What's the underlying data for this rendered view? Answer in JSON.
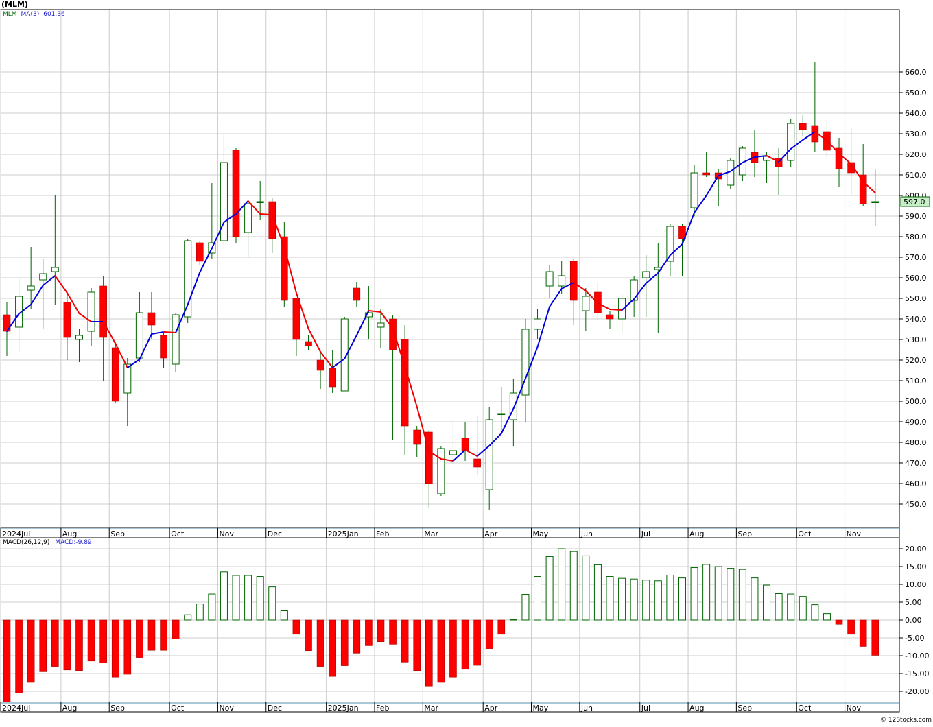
{
  "title": "(MLM)",
  "legend": {
    "symbol": "MLM",
    "ma_label": "MA(3)",
    "ma_value": "601.36"
  },
  "macd_legend": {
    "label": "MACD(26,12,9)",
    "value": "MACD:-9.89"
  },
  "price_flag": "597.0",
  "credit": "© 12Stocks.com",
  "colors": {
    "up_body_stroke": "#006400",
    "down_body_fill": "#ff0000",
    "wick": "#006400",
    "ma_up": "#0000dd",
    "ma_down": "#ee0000",
    "macd_pos_stroke": "#006400",
    "macd_neg_fill": "#ff0000",
    "grid": "#cccccc",
    "axis_band": "#a8c8d8",
    "flag_bg": "#c8f0c8"
  },
  "chart_data": [
    {
      "type": "candlestick",
      "interval": "weekly",
      "y_ticks": [
        450,
        460,
        470,
        480,
        490,
        500,
        510,
        520,
        530,
        540,
        550,
        560,
        570,
        580,
        590,
        600,
        610,
        620,
        630,
        640,
        650,
        660
      ],
      "y_tick_labels": [
        "450.0",
        "460.0",
        "470.0",
        "480.0",
        "490.0",
        "500.0",
        "510.0",
        "520.0",
        "530.0",
        "540.0",
        "550.0",
        "560.0",
        "570.0",
        "580.0",
        "590.0",
        "600.0",
        "610.0",
        "620.0",
        "630.0",
        "640.0",
        "650.0",
        "660.0"
      ],
      "x_labels": [
        {
          "label": "2024Jul",
          "week": 0
        },
        {
          "label": "Aug",
          "week": 5
        },
        {
          "label": "Sep",
          "week": 9
        },
        {
          "label": "Oct",
          "week": 14
        },
        {
          "label": "Nov",
          "week": 18
        },
        {
          "label": "Dec",
          "week": 22
        },
        {
          "label": "2025Jan",
          "week": 27
        },
        {
          "label": "Feb",
          "week": 31
        },
        {
          "label": "Mar",
          "week": 35
        },
        {
          "label": "Apr",
          "week": 40
        },
        {
          "label": "May",
          "week": 44
        },
        {
          "label": "Jun",
          "week": 48
        },
        {
          "label": "Jul",
          "week": 53
        },
        {
          "label": "Aug",
          "week": 57
        },
        {
          "label": "Sep",
          "week": 61
        },
        {
          "label": "Oct",
          "week": 66
        },
        {
          "label": "Nov",
          "week": 70
        }
      ],
      "candles": [
        {
          "o": 542,
          "h": 548,
          "l": 522,
          "c": 534
        },
        {
          "o": 536,
          "h": 560,
          "l": 524,
          "c": 551
        },
        {
          "o": 554,
          "h": 575,
          "l": 545,
          "c": 556
        },
        {
          "o": 559,
          "h": 569,
          "l": 535,
          "c": 562
        },
        {
          "o": 563,
          "h": 600,
          "l": 547,
          "c": 565
        },
        {
          "o": 548,
          "h": 553,
          "l": 520,
          "c": 531
        },
        {
          "o": 530,
          "h": 535,
          "l": 519,
          "c": 532
        },
        {
          "o": 534,
          "h": 555,
          "l": 527,
          "c": 553
        },
        {
          "o": 556,
          "h": 561,
          "l": 510,
          "c": 531
        },
        {
          "o": 526,
          "h": 529,
          "l": 499,
          "c": 500
        },
        {
          "o": 504,
          "h": 521,
          "l": 488,
          "c": 518
        },
        {
          "o": 521,
          "h": 553,
          "l": 519,
          "c": 543
        },
        {
          "o": 543,
          "h": 553,
          "l": 530,
          "c": 537
        },
        {
          "o": 532,
          "h": 534,
          "l": 516,
          "c": 521
        },
        {
          "o": 518,
          "h": 543,
          "l": 514,
          "c": 542
        },
        {
          "o": 541,
          "h": 579,
          "l": 538,
          "c": 578
        },
        {
          "o": 577,
          "h": 578,
          "l": 566,
          "c": 568
        },
        {
          "o": 572,
          "h": 606,
          "l": 569,
          "c": 577
        },
        {
          "o": 578,
          "h": 630,
          "l": 576,
          "c": 616
        },
        {
          "o": 622,
          "h": 623,
          "l": 577,
          "c": 580
        },
        {
          "o": 582,
          "h": 598,
          "l": 570,
          "c": 596
        },
        {
          "o": 597,
          "h": 607,
          "l": 588,
          "c": 597
        },
        {
          "o": 597,
          "h": 599,
          "l": 572,
          "c": 579
        },
        {
          "o": 580,
          "h": 587,
          "l": 546,
          "c": 549
        },
        {
          "o": 550,
          "h": 550,
          "l": 522,
          "c": 530
        },
        {
          "o": 529,
          "h": 532,
          "l": 525,
          "c": 527
        },
        {
          "o": 520,
          "h": 524,
          "l": 506,
          "c": 515
        },
        {
          "o": 516,
          "h": 525,
          "l": 504,
          "c": 507
        },
        {
          "o": 505,
          "h": 541,
          "l": 505,
          "c": 540
        },
        {
          "o": 555,
          "h": 558,
          "l": 546,
          "c": 549
        },
        {
          "o": 541,
          "h": 556,
          "l": 530,
          "c": 543
        },
        {
          "o": 536,
          "h": 545,
          "l": 526,
          "c": 538
        },
        {
          "o": 540,
          "h": 542,
          "l": 481,
          "c": 525
        },
        {
          "o": 530,
          "h": 537,
          "l": 474,
          "c": 488
        },
        {
          "o": 486,
          "h": 488,
          "l": 473,
          "c": 479
        },
        {
          "o": 485,
          "h": 486,
          "l": 448,
          "c": 460
        },
        {
          "o": 455,
          "h": 478,
          "l": 454,
          "c": 477
        },
        {
          "o": 474,
          "h": 490,
          "l": 469,
          "c": 476
        },
        {
          "o": 482,
          "h": 490,
          "l": 471,
          "c": 476
        },
        {
          "o": 472,
          "h": 493,
          "l": 464,
          "c": 468
        },
        {
          "o": 457,
          "h": 497,
          "l": 447,
          "c": 491
        },
        {
          "o": 494,
          "h": 507,
          "l": 486,
          "c": 494
        },
        {
          "o": 491,
          "h": 511,
          "l": 478,
          "c": 504
        },
        {
          "o": 503,
          "h": 540,
          "l": 490,
          "c": 535
        },
        {
          "o": 535,
          "h": 545,
          "l": 530,
          "c": 540
        },
        {
          "o": 556,
          "h": 566,
          "l": 550,
          "c": 563
        },
        {
          "o": 556,
          "h": 568,
          "l": 552,
          "c": 561
        },
        {
          "o": 568,
          "h": 569,
          "l": 537,
          "c": 549
        },
        {
          "o": 544,
          "h": 555,
          "l": 534,
          "c": 551
        },
        {
          "o": 553,
          "h": 558,
          "l": 539,
          "c": 543
        },
        {
          "o": 542,
          "h": 544,
          "l": 535,
          "c": 540
        },
        {
          "o": 540,
          "h": 552,
          "l": 533,
          "c": 550
        },
        {
          "o": 549,
          "h": 561,
          "l": 541,
          "c": 559
        },
        {
          "o": 560,
          "h": 571,
          "l": 541,
          "c": 563
        },
        {
          "o": 564,
          "h": 577,
          "l": 533,
          "c": 565
        },
        {
          "o": 568,
          "h": 586,
          "l": 561,
          "c": 585
        },
        {
          "o": 585,
          "h": 586,
          "l": 561,
          "c": 579
        },
        {
          "o": 594,
          "h": 615,
          "l": 590,
          "c": 611
        },
        {
          "o": 611,
          "h": 621,
          "l": 609,
          "c": 610
        },
        {
          "o": 611,
          "h": 613,
          "l": 595,
          "c": 608
        },
        {
          "o": 605,
          "h": 618,
          "l": 603,
          "c": 617
        },
        {
          "o": 610,
          "h": 624,
          "l": 607,
          "c": 623
        },
        {
          "o": 621,
          "h": 632,
          "l": 609,
          "c": 616
        },
        {
          "o": 617,
          "h": 621,
          "l": 606,
          "c": 619
        },
        {
          "o": 618,
          "h": 623,
          "l": 600,
          "c": 614
        },
        {
          "o": 617,
          "h": 637,
          "l": 614,
          "c": 635
        },
        {
          "o": 635,
          "h": 639,
          "l": 629,
          "c": 632
        },
        {
          "o": 634,
          "h": 665,
          "l": 621,
          "c": 626
        },
        {
          "o": 631,
          "h": 636,
          "l": 618,
          "c": 622
        },
        {
          "o": 623,
          "h": 628,
          "l": 604,
          "c": 613
        },
        {
          "o": 616,
          "h": 633,
          "l": 600,
          "c": 611
        },
        {
          "o": 610,
          "h": 625,
          "l": 595,
          "c": 596
        },
        {
          "o": 597,
          "h": 613,
          "l": 585,
          "c": 597
        }
      ]
    },
    {
      "type": "bar",
      "name": "MACD(26,12,9)",
      "y_ticks": [
        -20,
        -15,
        -10,
        -5,
        0,
        5,
        10,
        15,
        20
      ],
      "y_tick_labels": [
        "-20.00",
        "-15.00",
        "-10.00",
        "-5.00",
        "0.00",
        "5.00",
        "10.00",
        "15.00",
        "20.00"
      ],
      "values": [
        -25,
        -20.5,
        -17.5,
        -14.5,
        -13,
        -14,
        -14.2,
        -11.5,
        -12,
        -16,
        -15.2,
        -10.5,
        -8.5,
        -8.5,
        -5.3,
        1.5,
        4.5,
        7.3,
        13.5,
        12.5,
        12.5,
        12.2,
        9.3,
        2.6,
        -4,
        -8.6,
        -13,
        -15.8,
        -12.8,
        -9.3,
        -7.2,
        -6.1,
        -6.8,
        -11.8,
        -14.2,
        -18.5,
        -17.5,
        -16,
        -13.8,
        -12.7,
        -8,
        -4,
        0.2,
        7.2,
        12.2,
        17.8,
        20,
        19.2,
        18,
        15.5,
        12.2,
        11.7,
        11.5,
        11.2,
        11,
        12.6,
        11.8,
        14.7,
        15.6,
        15,
        14.5,
        14.2,
        11.8,
        9.8,
        7.4,
        7.3,
        6.6,
        4.3,
        1.8,
        -1.2,
        -4,
        -7.4,
        -9.89
      ]
    }
  ]
}
